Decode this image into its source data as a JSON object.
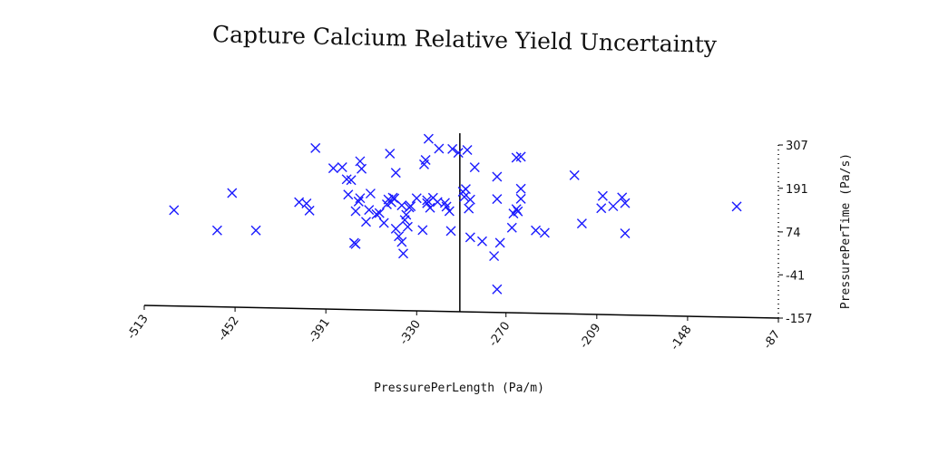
{
  "chart_data": {
    "type": "scatter",
    "title": "Capture Calcium Relative Yield Uncertainty",
    "xlabel": "PressurePerLength (Pa/m)",
    "ylabel": "PressurePerTime (Pa/s)",
    "xlim": [
      -513,
      -87
    ],
    "ylim": [
      -157,
      307
    ],
    "x_ticks": [
      "-513",
      "-452",
      "-391",
      "-330",
      "-270",
      "-209",
      "-148",
      "-87"
    ],
    "y_ticks": [
      "-157",
      "-41",
      "74",
      "191",
      "307"
    ],
    "marker": "x",
    "color": "#1a1aff",
    "points": [
      [
        -493,
        100
      ],
      [
        -464,
        48
      ],
      [
        -454,
        149
      ],
      [
        -438,
        50
      ],
      [
        -409,
        128
      ],
      [
        -404,
        125
      ],
      [
        -402,
        106
      ],
      [
        -398,
        274
      ],
      [
        -386,
        221
      ],
      [
        -380,
        224
      ],
      [
        -377,
        192
      ],
      [
        -376,
        151
      ],
      [
        -374,
        190
      ],
      [
        -372,
        22
      ],
      [
        -371,
        19
      ],
      [
        -371,
        107
      ],
      [
        -369,
        133
      ],
      [
        -368,
        142
      ],
      [
        -368,
        241
      ],
      [
        -367,
        221
      ],
      [
        -364,
        79
      ],
      [
        -362,
        111
      ],
      [
        -361,
        155
      ],
      [
        -357,
        100
      ],
      [
        -355,
        103
      ],
      [
        -352,
        77
      ],
      [
        -350,
        127
      ],
      [
        -349,
        140
      ],
      [
        -348,
        263
      ],
      [
        -347,
        133
      ],
      [
        -346,
        145
      ],
      [
        -345,
        143
      ],
      [
        -344,
        212
      ],
      [
        -344,
        62
      ],
      [
        -342,
        42
      ],
      [
        -340,
        27
      ],
      [
        -340,
        125
      ],
      [
        -339,
        -4
      ],
      [
        -338,
        86
      ],
      [
        -337,
        100
      ],
      [
        -336,
        68
      ],
      [
        -335,
        120
      ],
      [
        -334,
        123
      ],
      [
        -330,
        145
      ],
      [
        -326,
        60
      ],
      [
        -325,
        236
      ],
      [
        -324,
        248
      ],
      [
        -323,
        132
      ],
      [
        -323,
        140
      ],
      [
        -322,
        305
      ],
      [
        -321,
        120
      ],
      [
        -319,
        147
      ],
      [
        -316,
        136
      ],
      [
        -315,
        279
      ],
      [
        -311,
        134
      ],
      [
        -310,
        124
      ],
      [
        -308,
        112
      ],
      [
        -307,
        59
      ],
      [
        -306,
        279
      ],
      [
        -302,
        269
      ],
      [
        -299,
        165
      ],
      [
        -298,
        151
      ],
      [
        -297,
        172
      ],
      [
        -296,
        277
      ],
      [
        -295,
        120
      ],
      [
        -294,
        144
      ],
      [
        -294,
        43
      ],
      [
        -291,
        231
      ],
      [
        -286,
        33
      ],
      [
        -278,
        -6
      ],
      [
        -276,
        207
      ],
      [
        -276,
        147
      ],
      [
        -274,
        30
      ],
      [
        -276,
        -95
      ],
      [
        -266,
        71
      ],
      [
        -265,
        109
      ],
      [
        -263,
        259
      ],
      [
        -263,
        121
      ],
      [
        -262,
        115
      ],
      [
        -260,
        262
      ],
      [
        -260,
        176
      ],
      [
        -260,
        149
      ],
      [
        -250,
        65
      ],
      [
        -244,
        59
      ],
      [
        -224,
        215
      ],
      [
        -219,
        86
      ],
      [
        -206,
        128
      ],
      [
        -205,
        161
      ],
      [
        -198,
        134
      ],
      [
        -192,
        158
      ],
      [
        -190,
        62
      ],
      [
        -190,
        143
      ],
      [
        -115,
        140
      ]
    ]
  }
}
